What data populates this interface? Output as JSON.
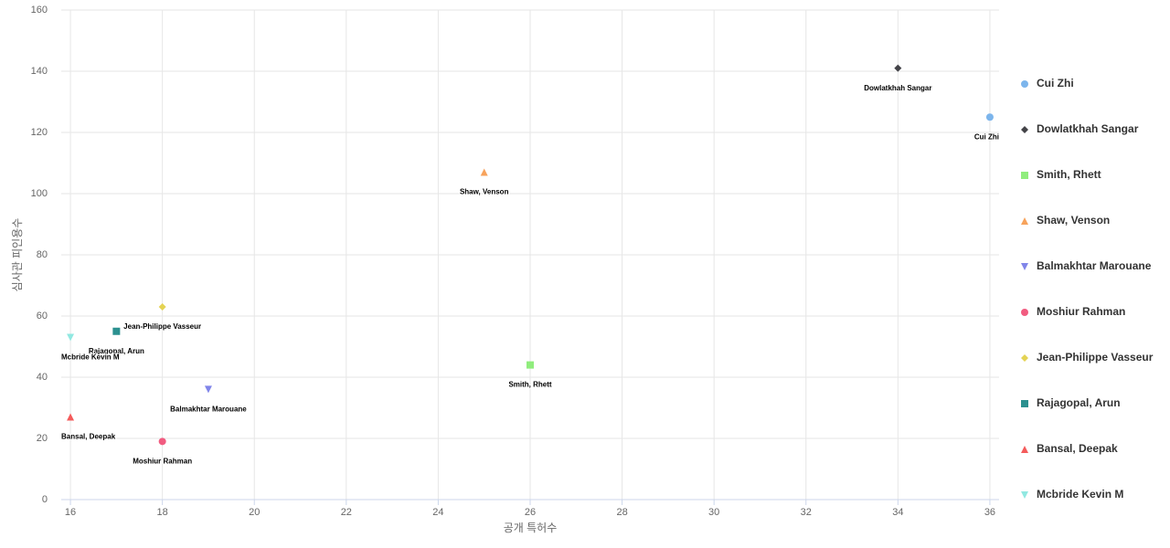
{
  "chart_data": {
    "type": "scatter",
    "x_label": "공개 특허수",
    "y_label": "심사관 피인용수",
    "xlim": [
      15.8,
      36.2
    ],
    "xticks": [
      16,
      18,
      20,
      22,
      24,
      26,
      28,
      30,
      32,
      34,
      36
    ],
    "ylim": [
      0,
      160
    ],
    "yticks": [
      0,
      20,
      40,
      60,
      80,
      100,
      120,
      140,
      160
    ],
    "grid": true,
    "legend": "right",
    "series": [
      {
        "name": "Cui Zhi",
        "color": "#7cb5ec",
        "symbol": "circle",
        "x": [
          36
        ],
        "values": [
          125
        ]
      },
      {
        "name": "Dowlatkhah Sangar",
        "color": "#434348",
        "symbol": "diamond",
        "x": [
          34
        ],
        "values": [
          141
        ]
      },
      {
        "name": "Smith, Rhett",
        "color": "#90ed7d",
        "symbol": "square",
        "x": [
          26
        ],
        "values": [
          44
        ]
      },
      {
        "name": "Shaw, Venson",
        "color": "#f7a35c",
        "symbol": "triangle",
        "x": [
          25
        ],
        "values": [
          107
        ]
      },
      {
        "name": "Balmakhtar Marouane",
        "color": "#8085e9",
        "symbol": "triangle-down",
        "x": [
          19
        ],
        "values": [
          36
        ]
      },
      {
        "name": "Moshiur Rahman",
        "color": "#f15c80",
        "symbol": "circle",
        "x": [
          18
        ],
        "values": [
          19
        ]
      },
      {
        "name": "Jean-Philippe Vasseur",
        "color": "#e4d354",
        "symbol": "diamond",
        "x": [
          18
        ],
        "values": [
          63
        ]
      },
      {
        "name": "Rajagopal, Arun",
        "color": "#2b908f",
        "symbol": "square",
        "x": [
          17
        ],
        "values": [
          55
        ]
      },
      {
        "name": "Bansal, Deepak",
        "color": "#f45b5b",
        "symbol": "triangle",
        "x": [
          16
        ],
        "values": [
          27
        ]
      },
      {
        "name": "Mcbride Kevin M",
        "color": "#91e8e1",
        "symbol": "triangle-down",
        "x": [
          16
        ],
        "values": [
          53
        ]
      }
    ]
  }
}
